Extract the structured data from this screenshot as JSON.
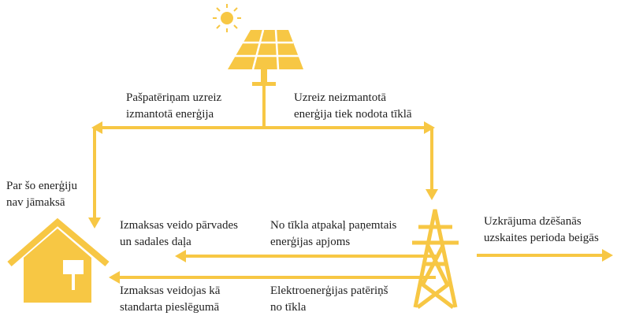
{
  "labels": [
    {
      "lines": [
        "Pašpatēriņam uzreiz",
        "izmantotā enerģija"
      ]
    },
    {
      "lines": [
        "Uzreiz neizmantotā",
        "enerģija tiek nodota tīklā"
      ]
    },
    {
      "lines": [
        "Par šo enerģiju",
        "nav jāmaksā"
      ]
    },
    {
      "lines": [
        "Izmaksas veido pārvades",
        "un sadales daļa"
      ]
    },
    {
      "lines": [
        "No tīkla atpakaļ paņemtais",
        "enerģijas apjoms"
      ]
    },
    {
      "lines": [
        "Uzkrājuma dzēšanās",
        "uzskaites perioda beigās"
      ]
    },
    {
      "lines": [
        "Izmaksas veidojas kā",
        "standarta pieslēgumā"
      ]
    },
    {
      "lines": [
        "Elektroenerģijas patēriņš",
        "no tīkla"
      ]
    }
  ]
}
